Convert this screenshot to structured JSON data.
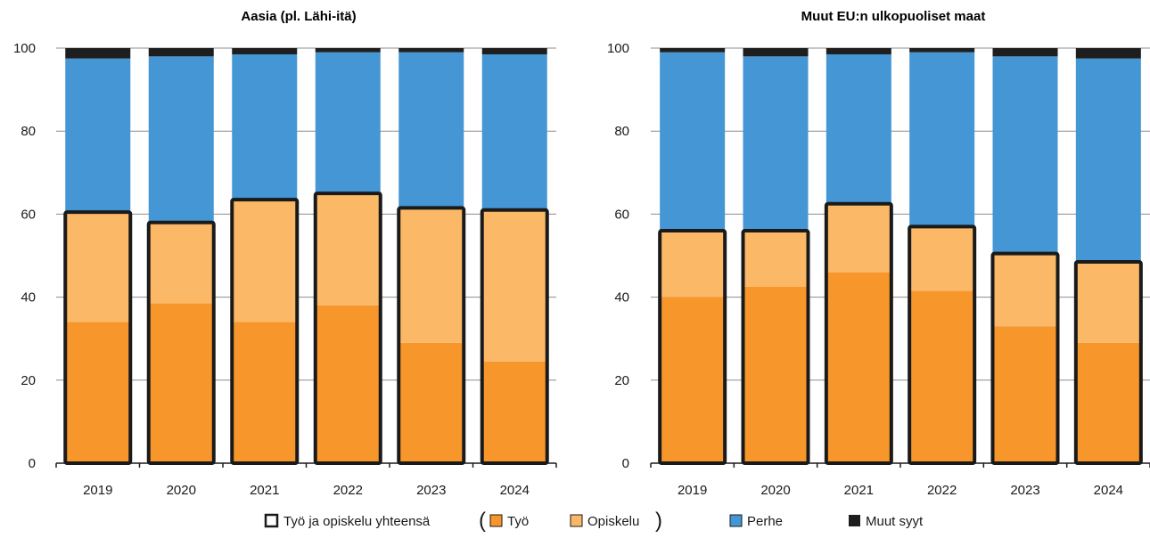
{
  "chart_data": [
    {
      "type": "bar",
      "stacked": true,
      "title": "Aasia (pl. Lähi-itä)",
      "categories": [
        "2019",
        "2020",
        "2021",
        "2022",
        "2023",
        "2024"
      ],
      "ylim": [
        0,
        100
      ],
      "yticks": [
        0,
        20,
        40,
        60,
        80,
        100
      ],
      "grid": true,
      "series": [
        {
          "name": "Työ",
          "color": "#F7962A",
          "values": [
            34,
            38.5,
            34,
            38,
            29,
            24.5
          ]
        },
        {
          "name": "Opiskelu",
          "color": "#FBB867",
          "values": [
            26.5,
            19.5,
            29.5,
            27,
            32.5,
            36.5
          ]
        },
        {
          "name": "Perhe",
          "color": "#4596D4",
          "values": [
            37,
            40,
            35,
            34,
            37.5,
            37.5
          ]
        },
        {
          "name": "Muut syyt",
          "color": "#1E1E1E",
          "values": [
            2.5,
            2,
            1.5,
            1,
            1,
            1.5
          ]
        }
      ],
      "totals": {
        "name": "Työ ja opiskelu yhteensä",
        "values": [
          60.5,
          58,
          63.5,
          65,
          61.5,
          61
        ]
      }
    },
    {
      "type": "bar",
      "stacked": true,
      "title": "Muut EU:n ulkopuoliset maat",
      "categories": [
        "2019",
        "2020",
        "2021",
        "2022",
        "2023",
        "2024"
      ],
      "ylim": [
        0,
        100
      ],
      "yticks": [
        0,
        20,
        40,
        60,
        80,
        100
      ],
      "grid": true,
      "series": [
        {
          "name": "Työ",
          "color": "#F7962A",
          "values": [
            40,
            42.5,
            46,
            41.5,
            33,
            29
          ]
        },
        {
          "name": "Opiskelu",
          "color": "#FBB867",
          "values": [
            16,
            13.5,
            16.5,
            15.5,
            17.5,
            19.5
          ]
        },
        {
          "name": "Perhe",
          "color": "#4596D4",
          "values": [
            43,
            42,
            36,
            42,
            47.5,
            49
          ]
        },
        {
          "name": "Muut syyt",
          "color": "#1E1E1E",
          "values": [
            1,
            2,
            1.5,
            1,
            2,
            2.5
          ]
        }
      ],
      "totals": {
        "name": "Työ ja opiskelu yhteensä",
        "values": [
          56,
          56,
          62.5,
          57,
          50.5,
          48.5
        ]
      }
    }
  ],
  "legend": {
    "placement": "bottom",
    "items": [
      {
        "label": "Työ ja opiskelu yhteensä",
        "icon": "outline-square-icon",
        "color": "#1a1a1a"
      },
      {
        "label": "Työ",
        "icon": "square-icon",
        "color": "#F7962A"
      },
      {
        "label": "Opiskelu",
        "icon": "square-icon",
        "color": "#FBB867"
      },
      {
        "label": "Perhe",
        "icon": "square-icon",
        "color": "#4596D4"
      },
      {
        "label": "Muut syyt",
        "icon": "square-icon",
        "color": "#1E1E1E"
      }
    ],
    "paren_open": "(",
    "paren_close": ")"
  }
}
